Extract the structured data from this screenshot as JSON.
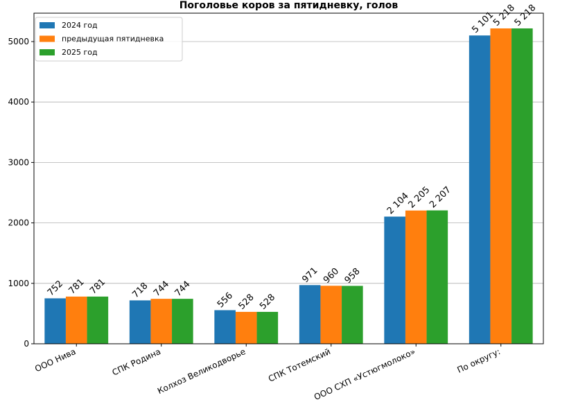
{
  "chart_data": {
    "type": "bar",
    "title": "Поголовье коров за пятидневку, голов",
    "xlabel": "",
    "ylabel": "",
    "categories": [
      "ООО Нива",
      "СПК Родина",
      "Колхоз Великодворье",
      "СПК Тотемский",
      "ООО СХП «Устюгмолоко»",
      "По округу:"
    ],
    "series": [
      {
        "name": "2024 год",
        "color": "#1f77b4",
        "values": [
          752,
          718,
          556,
          971,
          2104,
          5101
        ],
        "labels": [
          "752",
          "718",
          "556",
          "971",
          "2 104",
          "5 101"
        ]
      },
      {
        "name": "предыдущая пятидневка",
        "color": "#ff7f0e",
        "values": [
          781,
          744,
          528,
          960,
          2205,
          5218
        ],
        "labels": [
          "781",
          "744",
          "528",
          "960",
          "2 205",
          "5 218"
        ]
      },
      {
        "name": "2025 год",
        "color": "#2ca02c",
        "values": [
          781,
          744,
          528,
          958,
          2207,
          5218
        ],
        "labels": [
          "781",
          "744",
          "528",
          "958",
          "2 207",
          "5 218"
        ]
      }
    ],
    "ylim": [
      0,
      5470
    ],
    "yticks": [
      0,
      1000,
      2000,
      3000,
      4000,
      5000
    ],
    "ytick_labels": [
      "0",
      "1000",
      "2000",
      "3000",
      "4000",
      "5000"
    ],
    "grid": "horizontal",
    "legend_position": "top-left"
  }
}
